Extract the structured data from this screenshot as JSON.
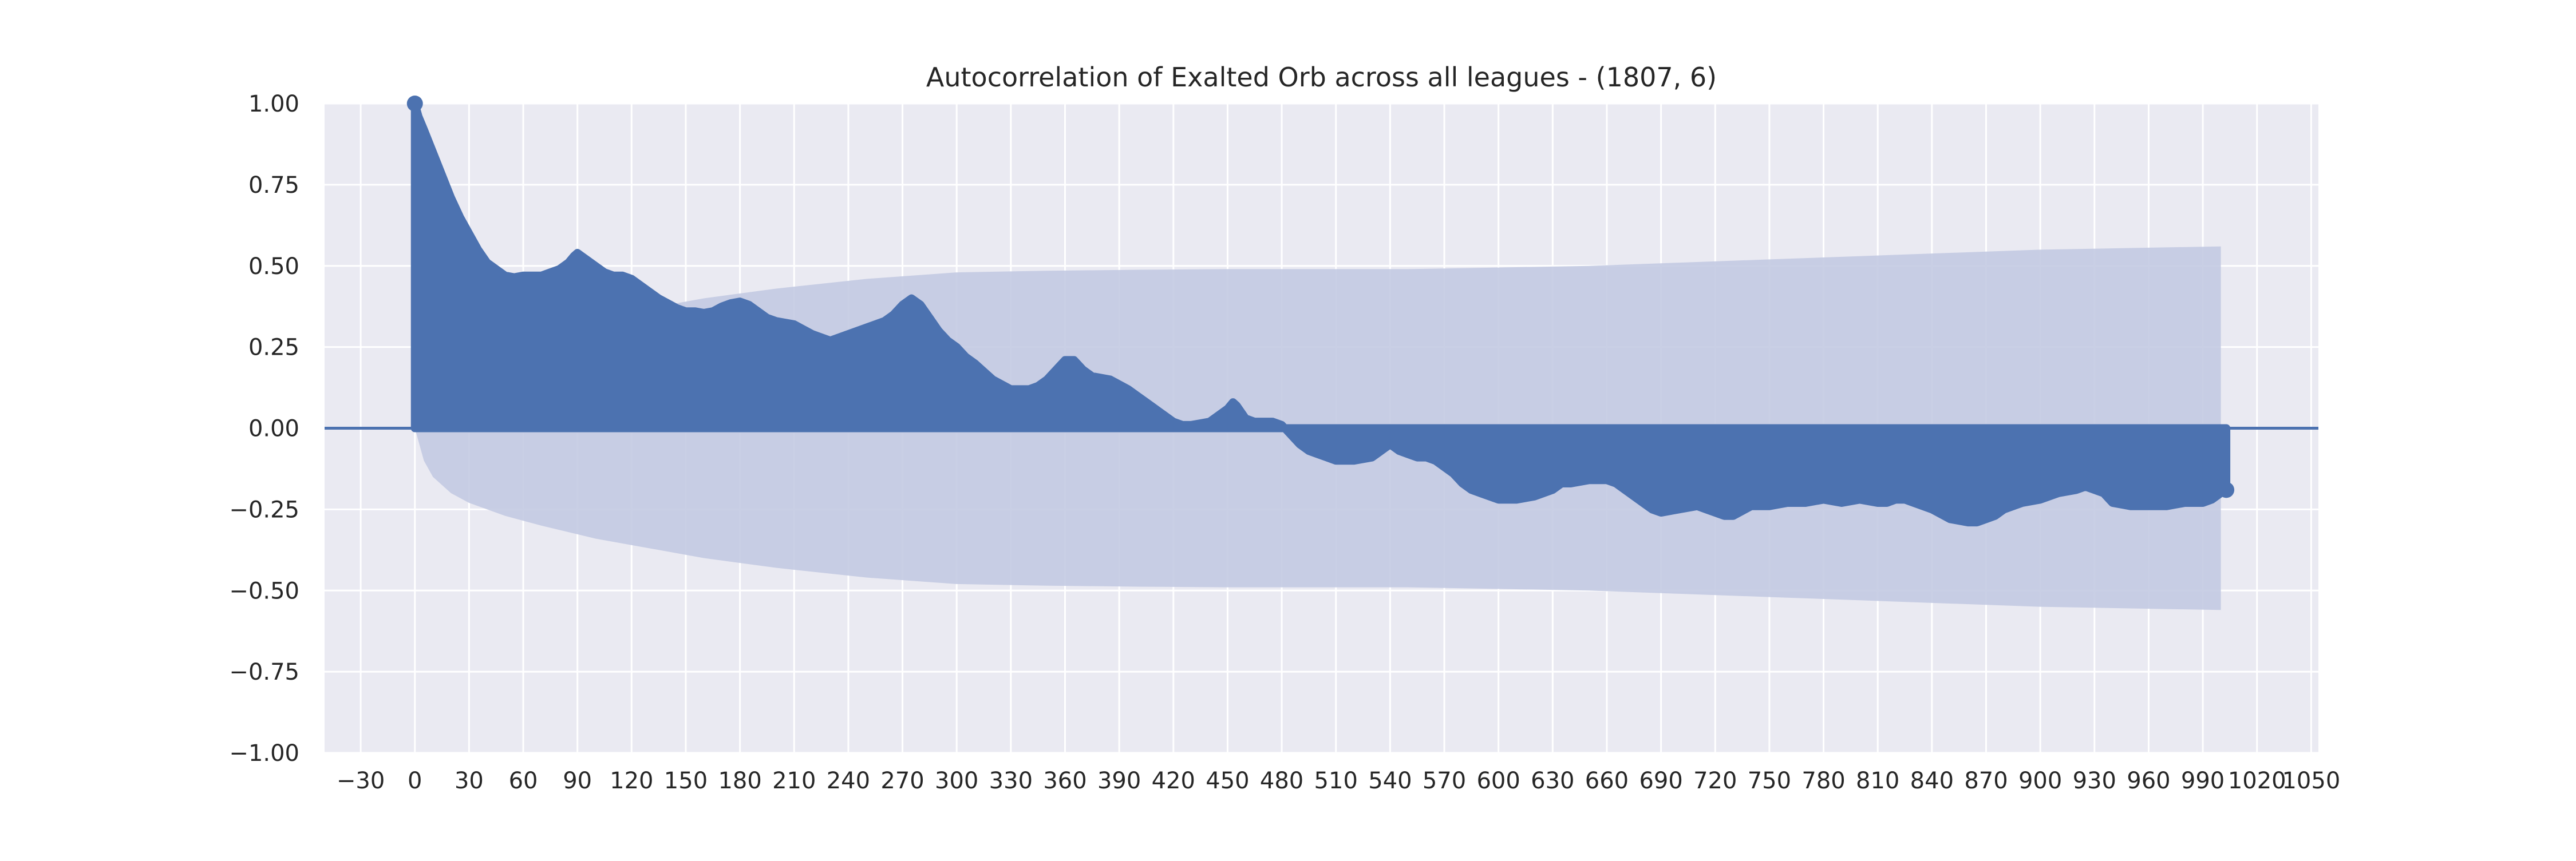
{
  "chart_data": {
    "type": "area",
    "title": "Autocorrelation of Exalted Orb across all leagues - (1807, 6)",
    "xlabel": "",
    "ylabel": "",
    "xlim": [
      -50,
      1054
    ],
    "ylim": [
      -1.0,
      1.0
    ],
    "x_ticks": [
      -30,
      0,
      30,
      60,
      90,
      120,
      150,
      180,
      210,
      240,
      270,
      300,
      330,
      360,
      390,
      420,
      450,
      480,
      510,
      540,
      570,
      600,
      630,
      660,
      690,
      720,
      750,
      780,
      810,
      840,
      870,
      900,
      930,
      960,
      990,
      1020,
      1050
    ],
    "y_ticks": [
      1.0,
      0.75,
      0.5,
      0.25,
      0.0,
      -0.25,
      -0.5,
      -0.75,
      -1.0
    ],
    "y_tick_labels": [
      "1.00",
      "0.75",
      "0.50",
      "0.25",
      "0.00",
      "−0.25",
      "−0.50",
      "−0.75",
      "−1.00"
    ],
    "grid": true,
    "colors": {
      "background": "#eaeaf2",
      "grid": "#ffffff",
      "series": "#4c72b0",
      "confidence_band": "#c3cae2"
    },
    "series": [
      {
        "lag": [
          0,
          2,
          5,
          10,
          15,
          20,
          25,
          30,
          35,
          40,
          45,
          50,
          55,
          60,
          65,
          70,
          75,
          80,
          85,
          88,
          90,
          95,
          100,
          105,
          110,
          115,
          120,
          125,
          130,
          135,
          140,
          145,
          150,
          155,
          160,
          165,
          170,
          175,
          180,
          185,
          190,
          195,
          200,
          210,
          220,
          230,
          240,
          250,
          260,
          265,
          270,
          275,
          280,
          285,
          290,
          295,
          300,
          305,
          310,
          320,
          330,
          340,
          345,
          350,
          355,
          360,
          365,
          370,
          375,
          380,
          385,
          390,
          395,
          400,
          405,
          410,
          415,
          420,
          425,
          430,
          435,
          440,
          445,
          450,
          453,
          455,
          460,
          465,
          470,
          475,
          480,
          485,
          490,
          495,
          500,
          505,
          510,
          520,
          530,
          535,
          540,
          545,
          550,
          555,
          560,
          565,
          570,
          575,
          580,
          585,
          590,
          595,
          600,
          610,
          620,
          630,
          635,
          640,
          650,
          660,
          665,
          670,
          675,
          680,
          685,
          690,
          700,
          710,
          715,
          720,
          725,
          730,
          740,
          750,
          760,
          770,
          780,
          790,
          800,
          810,
          815,
          820,
          825,
          830,
          840,
          850,
          860,
          865,
          870,
          875,
          880,
          890,
          900,
          910,
          920,
          925,
          930,
          935,
          940,
          950,
          960,
          970,
          980,
          990,
          995,
          1000,
          1003
        ],
        "acf": [
          1.0,
          0.96,
          0.92,
          0.85,
          0.78,
          0.71,
          0.65,
          0.6,
          0.55,
          0.51,
          0.49,
          0.47,
          0.465,
          0.47,
          0.47,
          0.47,
          0.48,
          0.49,
          0.51,
          0.53,
          0.54,
          0.52,
          0.5,
          0.48,
          0.47,
          0.47,
          0.46,
          0.44,
          0.42,
          0.4,
          0.385,
          0.37,
          0.36,
          0.36,
          0.355,
          0.36,
          0.375,
          0.385,
          0.39,
          0.38,
          0.36,
          0.34,
          0.33,
          0.32,
          0.29,
          0.27,
          0.29,
          0.31,
          0.33,
          0.35,
          0.38,
          0.4,
          0.38,
          0.34,
          0.3,
          0.27,
          0.25,
          0.22,
          0.2,
          0.15,
          0.12,
          0.12,
          0.13,
          0.15,
          0.18,
          0.21,
          0.21,
          0.18,
          0.16,
          0.155,
          0.15,
          0.135,
          0.12,
          0.1,
          0.08,
          0.06,
          0.04,
          0.02,
          0.01,
          0.01,
          0.015,
          0.02,
          0.04,
          0.06,
          0.08,
          0.07,
          0.03,
          0.02,
          0.02,
          0.02,
          0.01,
          -0.02,
          -0.05,
          -0.07,
          -0.08,
          -0.09,
          -0.1,
          -0.1,
          -0.09,
          -0.07,
          -0.05,
          -0.07,
          -0.08,
          -0.09,
          -0.09,
          -0.1,
          -0.12,
          -0.14,
          -0.17,
          -0.19,
          -0.2,
          -0.21,
          -0.22,
          -0.22,
          -0.21,
          -0.19,
          -0.17,
          -0.17,
          -0.16,
          -0.16,
          -0.17,
          -0.19,
          -0.21,
          -0.23,
          -0.25,
          -0.26,
          -0.25,
          -0.24,
          -0.25,
          -0.26,
          -0.27,
          -0.27,
          -0.24,
          -0.24,
          -0.23,
          -0.23,
          -0.22,
          -0.23,
          -0.22,
          -0.23,
          -0.23,
          -0.22,
          -0.22,
          -0.23,
          -0.25,
          -0.28,
          -0.29,
          -0.29,
          -0.28,
          -0.27,
          -0.25,
          -0.23,
          -0.22,
          -0.2,
          -0.19,
          -0.18,
          -0.19,
          -0.2,
          -0.23,
          -0.24,
          -0.24,
          -0.24,
          -0.23,
          -0.23,
          -0.22,
          -0.2,
          -0.19
        ]
      }
    ],
    "confidence_band": {
      "lag": [
        0,
        5,
        10,
        20,
        30,
        50,
        70,
        100,
        130,
        160,
        200,
        250,
        300,
        350,
        400,
        450,
        500,
        550,
        600,
        650,
        700,
        750,
        800,
        850,
        900,
        950,
        1000
      ],
      "upper": [
        0.0,
        0.1,
        0.15,
        0.2,
        0.23,
        0.27,
        0.3,
        0.34,
        0.37,
        0.4,
        0.43,
        0.46,
        0.48,
        0.485,
        0.488,
        0.49,
        0.49,
        0.49,
        0.495,
        0.5,
        0.51,
        0.52,
        0.53,
        0.54,
        0.55,
        0.555,
        0.56
      ]
    }
  }
}
